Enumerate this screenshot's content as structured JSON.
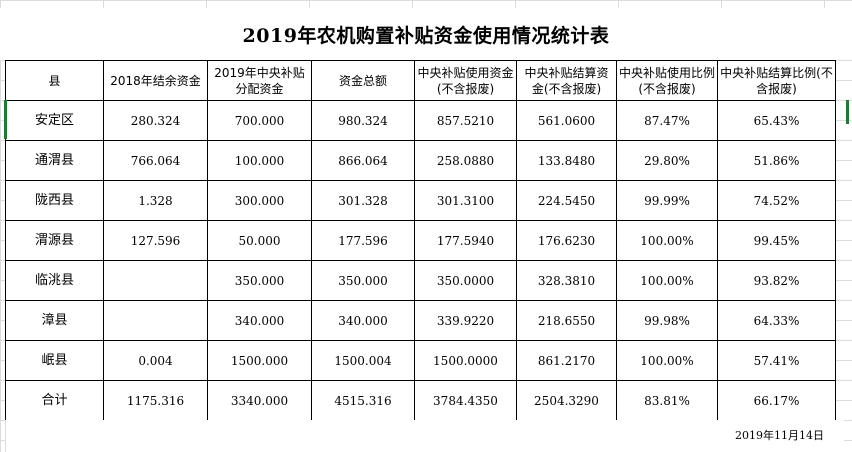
{
  "title": "2019年农机购置补贴资金使用情况统计表",
  "headers": [
    "县",
    "2018年结余资金",
    "2019年中央补贴分配资金",
    "资金总额",
    "中央补贴使用资金(不含报废)",
    "中央补贴结算资金(不含报废)",
    "中央补贴使用比例(不含报废)",
    "中央补贴结算比例(不含报废)"
  ],
  "rows": [
    {
      "county": "安定区",
      "surplus_2018": "280.324",
      "allocated_2019": "700.000",
      "total": "980.324",
      "used": "857.5210",
      "settled": "561.0600",
      "use_ratio": "87.47%",
      "settle_ratio": "65.43%"
    },
    {
      "county": "通渭县",
      "surplus_2018": "766.064",
      "allocated_2019": "100.000",
      "total": "866.064",
      "used": "258.0880",
      "settled": "133.8480",
      "use_ratio": "29.80%",
      "settle_ratio": "51.86%"
    },
    {
      "county": "陇西县",
      "surplus_2018": "1.328",
      "allocated_2019": "300.000",
      "total": "301.328",
      "used": "301.3100",
      "settled": "224.5450",
      "use_ratio": "99.99%",
      "settle_ratio": "74.52%"
    },
    {
      "county": "渭源县",
      "surplus_2018": "127.596",
      "allocated_2019": "50.000",
      "total": "177.596",
      "used": "177.5940",
      "settled": "176.6230",
      "use_ratio": "100.00%",
      "settle_ratio": "99.45%"
    },
    {
      "county": "临洮县",
      "surplus_2018": "",
      "allocated_2019": "350.000",
      "total": "350.000",
      "used": "350.0000",
      "settled": "328.3810",
      "use_ratio": "100.00%",
      "settle_ratio": "93.82%"
    },
    {
      "county": "漳县",
      "surplus_2018": "",
      "allocated_2019": "340.000",
      "total": "340.000",
      "used": "339.9220",
      "settled": "218.6550",
      "use_ratio": "99.98%",
      "settle_ratio": "64.33%"
    },
    {
      "county": "岷县",
      "surplus_2018": "0.004",
      "allocated_2019": "1500.000",
      "total": "1500.004",
      "used": "1500.0000",
      "settled": "861.2170",
      "use_ratio": "100.00%",
      "settle_ratio": "57.41%"
    },
    {
      "county": "合计",
      "surplus_2018": "1175.316",
      "allocated_2019": "3340.000",
      "total": "4515.316",
      "used": "3784.4350",
      "settled": "2504.3290",
      "use_ratio": "83.81%",
      "settle_ratio": "66.17%"
    }
  ],
  "date": "2019年11月14日",
  "colors": {
    "selection": "#1e7b34",
    "gridline": "#dcdcdc"
  }
}
